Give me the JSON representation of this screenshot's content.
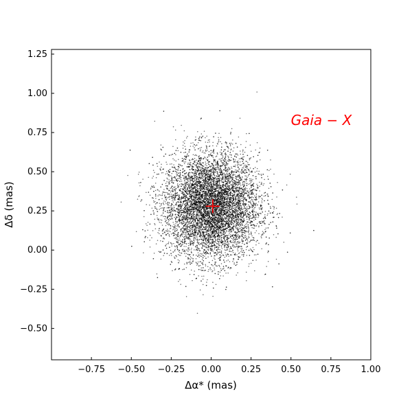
{
  "chart_data": {
    "type": "scatter",
    "xlabel": "Δα* (mas)",
    "ylabel": "Δδ (mas)",
    "xlim": [
      -1.0,
      1.0
    ],
    "ylim": [
      -0.7,
      1.28
    ],
    "xticks": [
      -0.75,
      -0.5,
      -0.25,
      0.0,
      0.25,
      0.5,
      0.75,
      1.0
    ],
    "xtick_labels": [
      "−0.75",
      "−0.50",
      "−0.25",
      "0.00",
      "0.25",
      "0.50",
      "0.75",
      "1.00"
    ],
    "yticks": [
      -0.5,
      -0.25,
      0.0,
      0.25,
      0.5,
      0.75,
      1.0,
      1.25
    ],
    "ytick_labels": [
      "−0.50",
      "−0.25",
      "0.00",
      "0.25",
      "0.50",
      "0.75",
      "1.00",
      "1.25"
    ],
    "grid": false,
    "point_color": "#000000",
    "cloud": {
      "center": [
        0.0,
        0.28
      ],
      "spread": [
        0.15,
        0.17
      ],
      "count": 9000,
      "note_points": "dense cloud of individual samples"
    },
    "marker": {
      "x": 0.01,
      "y": 0.28,
      "color": "#ff0000"
    },
    "annotations": [
      {
        "text": "Gaia − X",
        "x": 0.69,
        "y": 0.83,
        "color": "#ff0000"
      }
    ]
  }
}
